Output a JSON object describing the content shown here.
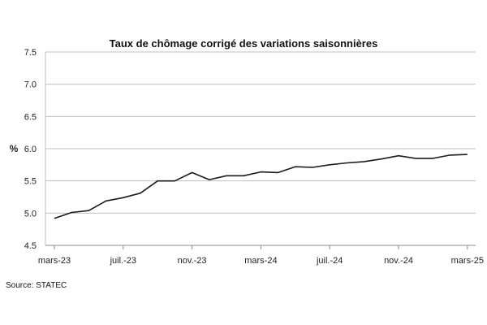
{
  "chart_data": {
    "type": "line",
    "title": "Taux de chômage corrigé des variations saisonnières",
    "ylabel": "%",
    "xlabel": "",
    "ylim": [
      4.5,
      7.5
    ],
    "yticks": [
      "4.5",
      "5.0",
      "5.5",
      "6.0",
      "6.5",
      "7.0",
      "7.5"
    ],
    "y_gridlines": true,
    "x_tick_labels": [
      "mars-23",
      "juil.-23",
      "nov.-23",
      "mars-24",
      "juil.-24",
      "nov.-24",
      "mars-25"
    ],
    "x_tick_every": 4,
    "x": [
      "mars-23",
      "avr.-23",
      "mai-23",
      "juin-23",
      "juil.-23",
      "août-23",
      "sept.-23",
      "oct.-23",
      "nov.-23",
      "déc.-23",
      "janv.-24",
      "févr.-24",
      "mars-24",
      "avr.-24",
      "mai-24",
      "juin-24",
      "juil.-24",
      "août-24",
      "sept.-24",
      "oct.-24",
      "nov.-24",
      "déc.-24",
      "janv.-25",
      "févr.-25",
      "mars-25"
    ],
    "series": [
      {
        "values": [
          4.92,
          5.01,
          5.04,
          5.19,
          5.24,
          5.31,
          5.5,
          5.5,
          5.63,
          5.52,
          5.58,
          5.58,
          5.64,
          5.63,
          5.72,
          5.71,
          5.75,
          5.78,
          5.8,
          5.84,
          5.89,
          5.85,
          5.85,
          5.9,
          5.91
        ],
        "color": "#1a1a1a"
      }
    ]
  },
  "source": "Source: STATEC"
}
